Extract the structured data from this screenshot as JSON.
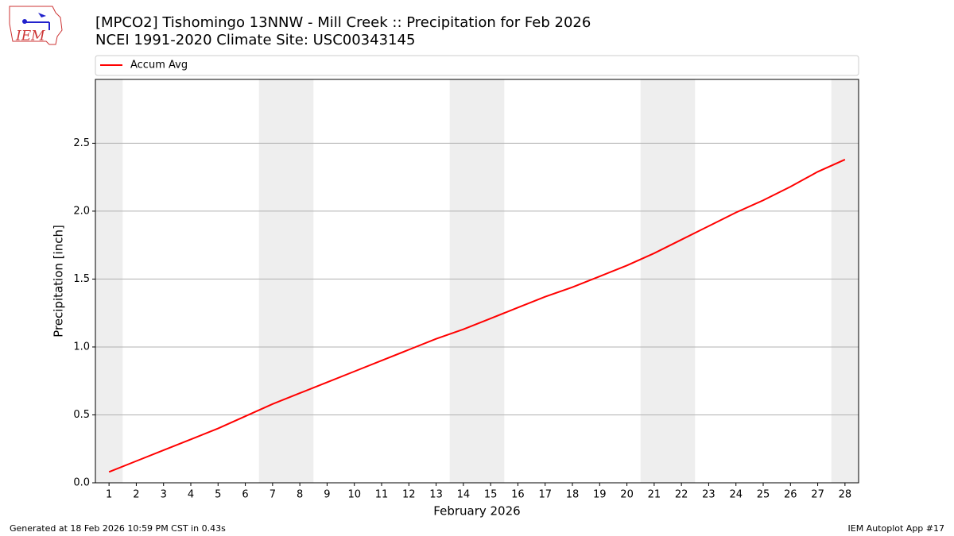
{
  "logo_text": "IEM",
  "footer_left": "Generated at 18 Feb 2026 10:59 PM CST in 0.43s",
  "footer_right": "IEM Autoplot App #17",
  "chart_data": {
    "type": "line",
    "title": "[MPCO2] Tishomingo 13NNW - Mill Creek :: Precipitation for Feb 2026",
    "subtitle": "NCEI 1991-2020 Climate Site: USC00343145",
    "x_label": "February 2026",
    "y_label": "Precipitation [inch]",
    "x": [
      1,
      2,
      3,
      4,
      5,
      6,
      7,
      8,
      9,
      10,
      11,
      12,
      13,
      14,
      15,
      16,
      17,
      18,
      19,
      20,
      21,
      22,
      23,
      24,
      25,
      26,
      27,
      28
    ],
    "series": [
      {
        "name": "Accum Avg",
        "color": "#ff0000",
        "values": [
          0.08,
          0.16,
          0.24,
          0.32,
          0.4,
          0.49,
          0.58,
          0.66,
          0.74,
          0.82,
          0.9,
          0.98,
          1.06,
          1.13,
          1.21,
          1.29,
          1.37,
          1.44,
          1.52,
          1.6,
          1.69,
          1.79,
          1.89,
          1.99,
          2.08,
          2.18,
          2.29,
          2.38
        ]
      }
    ],
    "xlim": [
      0.5,
      28.5
    ],
    "xticks": [
      1,
      2,
      3,
      4,
      5,
      6,
      7,
      8,
      9,
      10,
      11,
      12,
      13,
      14,
      15,
      16,
      17,
      18,
      19,
      20,
      21,
      22,
      23,
      24,
      25,
      26,
      27,
      28
    ],
    "ylim": [
      0,
      2.97
    ],
    "yticks": [
      {
        "value": 0,
        "label": "0.0"
      },
      0.5,
      {
        "value": 1,
        "label": "1.0"
      },
      1.5,
      {
        "value": 2,
        "label": "2.0"
      },
      2.5
    ],
    "grid": true,
    "weekend_spans": [
      [
        0.5,
        1.5
      ],
      [
        6.5,
        8.5
      ],
      [
        13.5,
        15.5
      ],
      [
        20.5,
        22.5
      ],
      [
        27.5,
        28.5
      ]
    ],
    "weekend_color": "#eeeeee",
    "legend": "top"
  }
}
